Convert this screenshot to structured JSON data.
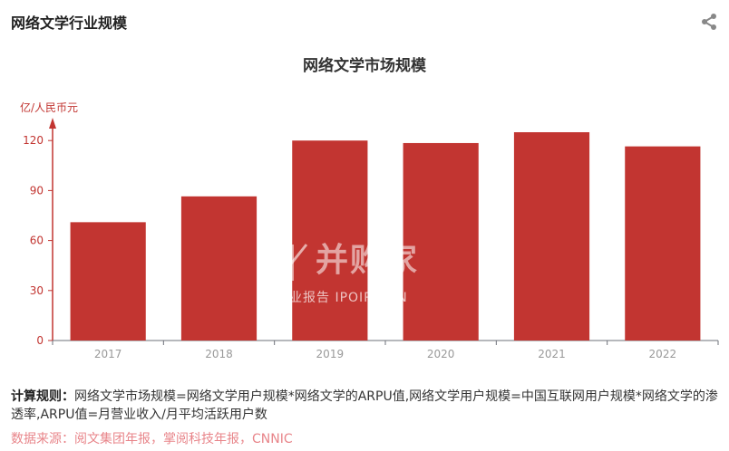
{
  "header": {
    "title": "网络文学行业规模"
  },
  "icons": {
    "share": "share-icon"
  },
  "watermark": {
    "main": "并购家",
    "sub": "行业报告 IPOIPO.CN"
  },
  "colors": {
    "bar": "#c23531",
    "axis": "#c23531",
    "tick_text": "#999999",
    "source_text": "#e8858a"
  },
  "chart_data": {
    "type": "bar",
    "title": "网络文学市场规模",
    "ylabel": "亿/人民币元",
    "xlabel": "",
    "categories": [
      "2017",
      "2018",
      "2019",
      "2020",
      "2021",
      "2022"
    ],
    "values": [
      71,
      86.5,
      120,
      118.5,
      125,
      116.5
    ],
    "ylim": [
      0,
      125
    ],
    "yticks": [
      0,
      30,
      60,
      90,
      120
    ],
    "grid": false,
    "legend": "none"
  },
  "footer": {
    "rule_label": "计算规则：",
    "rule_text": "网络文学市场规模=网络文学用户规模*网络文学的ARPU值,网络文学用户规模=中国互联网用户规模*网络文学的渗透率,ARPU值=月营业收入/月平均活跃用户数",
    "source": "数据来源：阅文集团年报，掌阅科技年报，CNNIC"
  }
}
